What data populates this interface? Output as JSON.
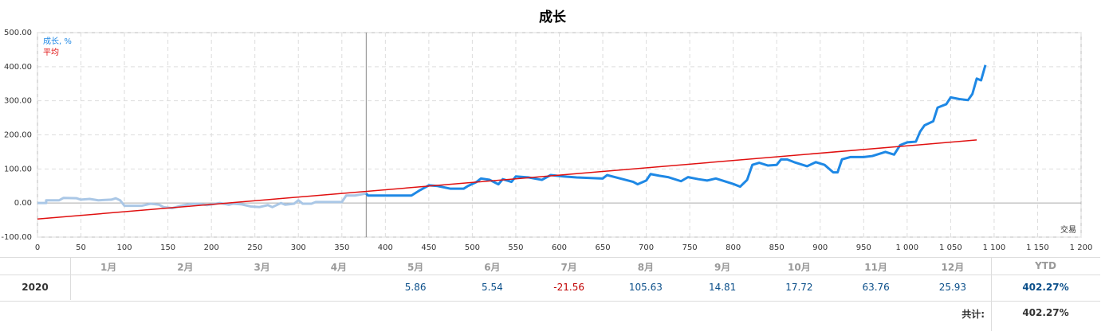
{
  "chart_data": {
    "type": "line",
    "title": "成长",
    "xlabel": "交易",
    "xlim": [
      0,
      1200
    ],
    "xticks": [
      0,
      50,
      100,
      150,
      200,
      250,
      300,
      350,
      400,
      450,
      500,
      550,
      600,
      650,
      700,
      750,
      800,
      850,
      900,
      950,
      {
        "value": 1000,
        "label": "1 000"
      },
      {
        "value": 1050,
        "label": "1 050"
      },
      {
        "value": 1100,
        "label": "1 100"
      },
      {
        "value": 1150,
        "label": "1 150"
      },
      {
        "value": 1200,
        "label": "1 200"
      }
    ],
    "ylim": [
      -100,
      500
    ],
    "yticks": [
      {
        "value": -100,
        "label": "-100.00"
      },
      {
        "value": 0,
        "label": "0.00"
      },
      {
        "value": 100,
        "label": "100.00"
      },
      {
        "value": 200,
        "label": "200.00"
      },
      {
        "value": 300,
        "label": "300.00"
      },
      {
        "value": 400,
        "label": "400.00"
      },
      {
        "value": 500,
        "label": "500.00"
      }
    ],
    "grid": true,
    "legend": "top-left",
    "vline": 378,
    "series": [
      {
        "name": "成长, %",
        "color": "#1e88e5",
        "faded_color": "#aac7e6",
        "x": [
          0,
          10,
          10,
          25,
          30,
          45,
          50,
          60,
          70,
          85,
          90,
          95,
          100,
          115,
          120,
          130,
          140,
          145,
          155,
          165,
          175,
          185,
          195,
          210,
          220,
          225,
          235,
          245,
          255,
          265,
          270,
          280,
          285,
          295,
          300,
          305,
          315,
          320,
          340,
          350,
          355,
          365,
          378,
          380,
          430,
          440,
          450,
          460,
          475,
          490,
          495,
          505,
          510,
          520,
          530,
          535,
          545,
          550,
          565,
          580,
          590,
          605,
          620,
          650,
          655,
          670,
          685,
          690,
          700,
          705,
          715,
          725,
          740,
          748,
          760,
          770,
          780,
          800,
          808,
          816,
          822,
          830,
          840,
          850,
          855,
          862,
          870,
          885,
          895,
          905,
          915,
          920,
          925,
          935,
          950,
          960,
          975,
          985,
          992,
          1000,
          1010,
          1015,
          1020,
          1030,
          1035,
          1045,
          1050,
          1060,
          1070,
          1075,
          1080,
          1085,
          1090
        ],
        "values": [
          0,
          0,
          8,
          8,
          15,
          14,
          10,
          12,
          8,
          10,
          14,
          8,
          -8,
          -8,
          -8,
          -2,
          -5,
          -12,
          -15,
          -8,
          -3,
          -2,
          -6,
          0,
          -5,
          -2,
          -4,
          -10,
          -12,
          -6,
          -12,
          0,
          -5,
          -2,
          8,
          -2,
          -2,
          3,
          3,
          3,
          22,
          22,
          28,
          22,
          22,
          38,
          52,
          50,
          42,
          42,
          50,
          62,
          72,
          68,
          55,
          70,
          62,
          78,
          75,
          68,
          82,
          78,
          75,
          72,
          82,
          72,
          62,
          55,
          66,
          85,
          80,
          76,
          64,
          76,
          70,
          66,
          72,
          56,
          48,
          68,
          112,
          118,
          110,
          112,
          128,
          128,
          120,
          108,
          120,
          112,
          90,
          90,
          128,
          135,
          135,
          138,
          150,
          142,
          170,
          178,
          180,
          210,
          228,
          240,
          280,
          290,
          310,
          305,
          302,
          320,
          365,
          360,
          405
        ]
      },
      {
        "name": "平均",
        "color": "#e01010",
        "x": [
          0,
          1080
        ],
        "values": [
          -47,
          185
        ]
      }
    ]
  },
  "table": {
    "header": [
      "1月",
      "2月",
      "3月",
      "4月",
      "5月",
      "6月",
      "7月",
      "8月",
      "9月",
      "10月",
      "11月",
      "12月",
      "YTD"
    ],
    "rows": [
      [
        "2020",
        null,
        null,
        null,
        null,
        "5.86",
        "5.54",
        "-21.56",
        "105.63",
        "14.81",
        "17.72",
        "63.76",
        "25.93",
        "402.27%"
      ]
    ],
    "total_label": "共计:",
    "total": "402.27%"
  }
}
